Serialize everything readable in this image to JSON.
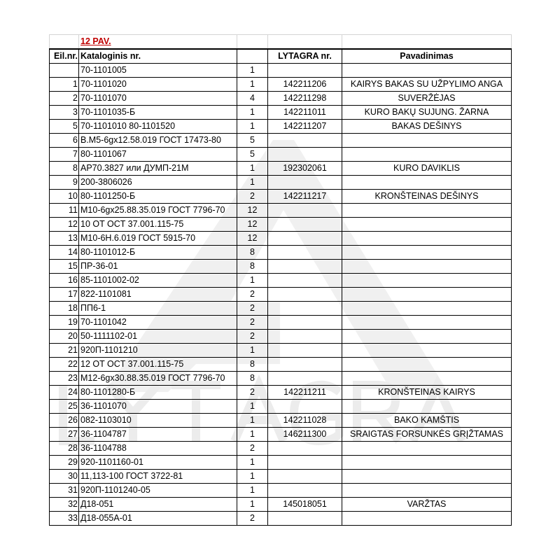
{
  "sheet_title": "12 PAV.",
  "watermark": "LYTAGRA",
  "columns": [
    "Eil.nr.",
    "Kataloginis nr.",
    "",
    "LYTAGRA nr.",
    "Pavadinimas"
  ],
  "rows": [
    [
      "",
      "70-1101005",
      "1",
      "",
      ""
    ],
    [
      "1",
      "70-1101020",
      "1",
      "142211206",
      "KAIRYS BAKAS SU UŽPYLIMO ANGA"
    ],
    [
      "2",
      "70-1101070",
      "4",
      "142211298",
      "SUVERŽĖJAS"
    ],
    [
      "3",
      "70-1101035-Б",
      "1",
      "142211011",
      "KURO BAKŲ SUJUNG. ŽARNA"
    ],
    [
      "5",
      "70-1101010 80-1101520",
      "1",
      "142211207",
      "BAKAS DEŠINYS"
    ],
    [
      "6",
      "B.M5-6gx12.58.019 ГОСТ 17473-80",
      "5",
      "",
      ""
    ],
    [
      "7",
      "80-1101067",
      "5",
      "",
      ""
    ],
    [
      "8",
      "AP70.3827 или ДУМП-21М",
      "1",
      "192302061",
      "KURO DAVIKLIS"
    ],
    [
      "9",
      "200-3806026",
      "1",
      "",
      ""
    ],
    [
      "10",
      "80-1101250-Б",
      "2",
      "142211217",
      "KRONŠTEINAS DEŠINYS"
    ],
    [
      "11",
      "M10-6gx25.88.35.019 ГОСТ 7796-70",
      "12",
      "",
      ""
    ],
    [
      "12",
      "10 OT OCT 37.001.115-75",
      "12",
      "",
      ""
    ],
    [
      "13",
      "M10-6H.6.019 ГОСТ 5915-70",
      "12",
      "",
      ""
    ],
    [
      "14",
      "80-1101012-Б",
      "8",
      "",
      ""
    ],
    [
      "15",
      "ПР-36-01",
      "8",
      "",
      ""
    ],
    [
      "16",
      "85-1101002-02",
      "1",
      "",
      ""
    ],
    [
      "17",
      "822-1101081",
      "2",
      "",
      ""
    ],
    [
      "18",
      "ПП6-1",
      "2",
      "",
      ""
    ],
    [
      "19",
      "70-1101042",
      "2",
      "",
      ""
    ],
    [
      "20",
      "50-1111102-01",
      "2",
      "",
      ""
    ],
    [
      "21",
      "920П-1101210",
      "1",
      "",
      ""
    ],
    [
      "22",
      "12 OT OCT 37.001.115-75",
      "8",
      "",
      ""
    ],
    [
      "23",
      "M12-6gx30.88.35.019 ГОСТ 7796-70",
      "8",
      "",
      ""
    ],
    [
      "24",
      "80-1101280-Б",
      "2",
      "142211211",
      "KRONŠTEINAS KAIRYS"
    ],
    [
      "25",
      "36-1101070",
      "1",
      "",
      ""
    ],
    [
      "26",
      "082-1103010",
      "1",
      "142211028",
      "BAKO KAMŠTIS"
    ],
    [
      "27",
      "36-1104787",
      "1",
      "146211300",
      "SRAIGTAS FORSUNKĖS GRĮŽTAMAS"
    ],
    [
      "28",
      "36-1104788",
      "2",
      "",
      ""
    ],
    [
      "29",
      "920-1101160-01",
      "1",
      "",
      ""
    ],
    [
      "30",
      "11,113-100 ГОСТ 3722-81",
      "1",
      "",
      ""
    ],
    [
      "31",
      "920П-1101240-05",
      "1",
      "",
      ""
    ],
    [
      "32",
      "Д18-051",
      "1",
      "145018051",
      "VARŽTAS"
    ],
    [
      "33",
      "Д18-055А-01",
      "2",
      "",
      ""
    ]
  ]
}
